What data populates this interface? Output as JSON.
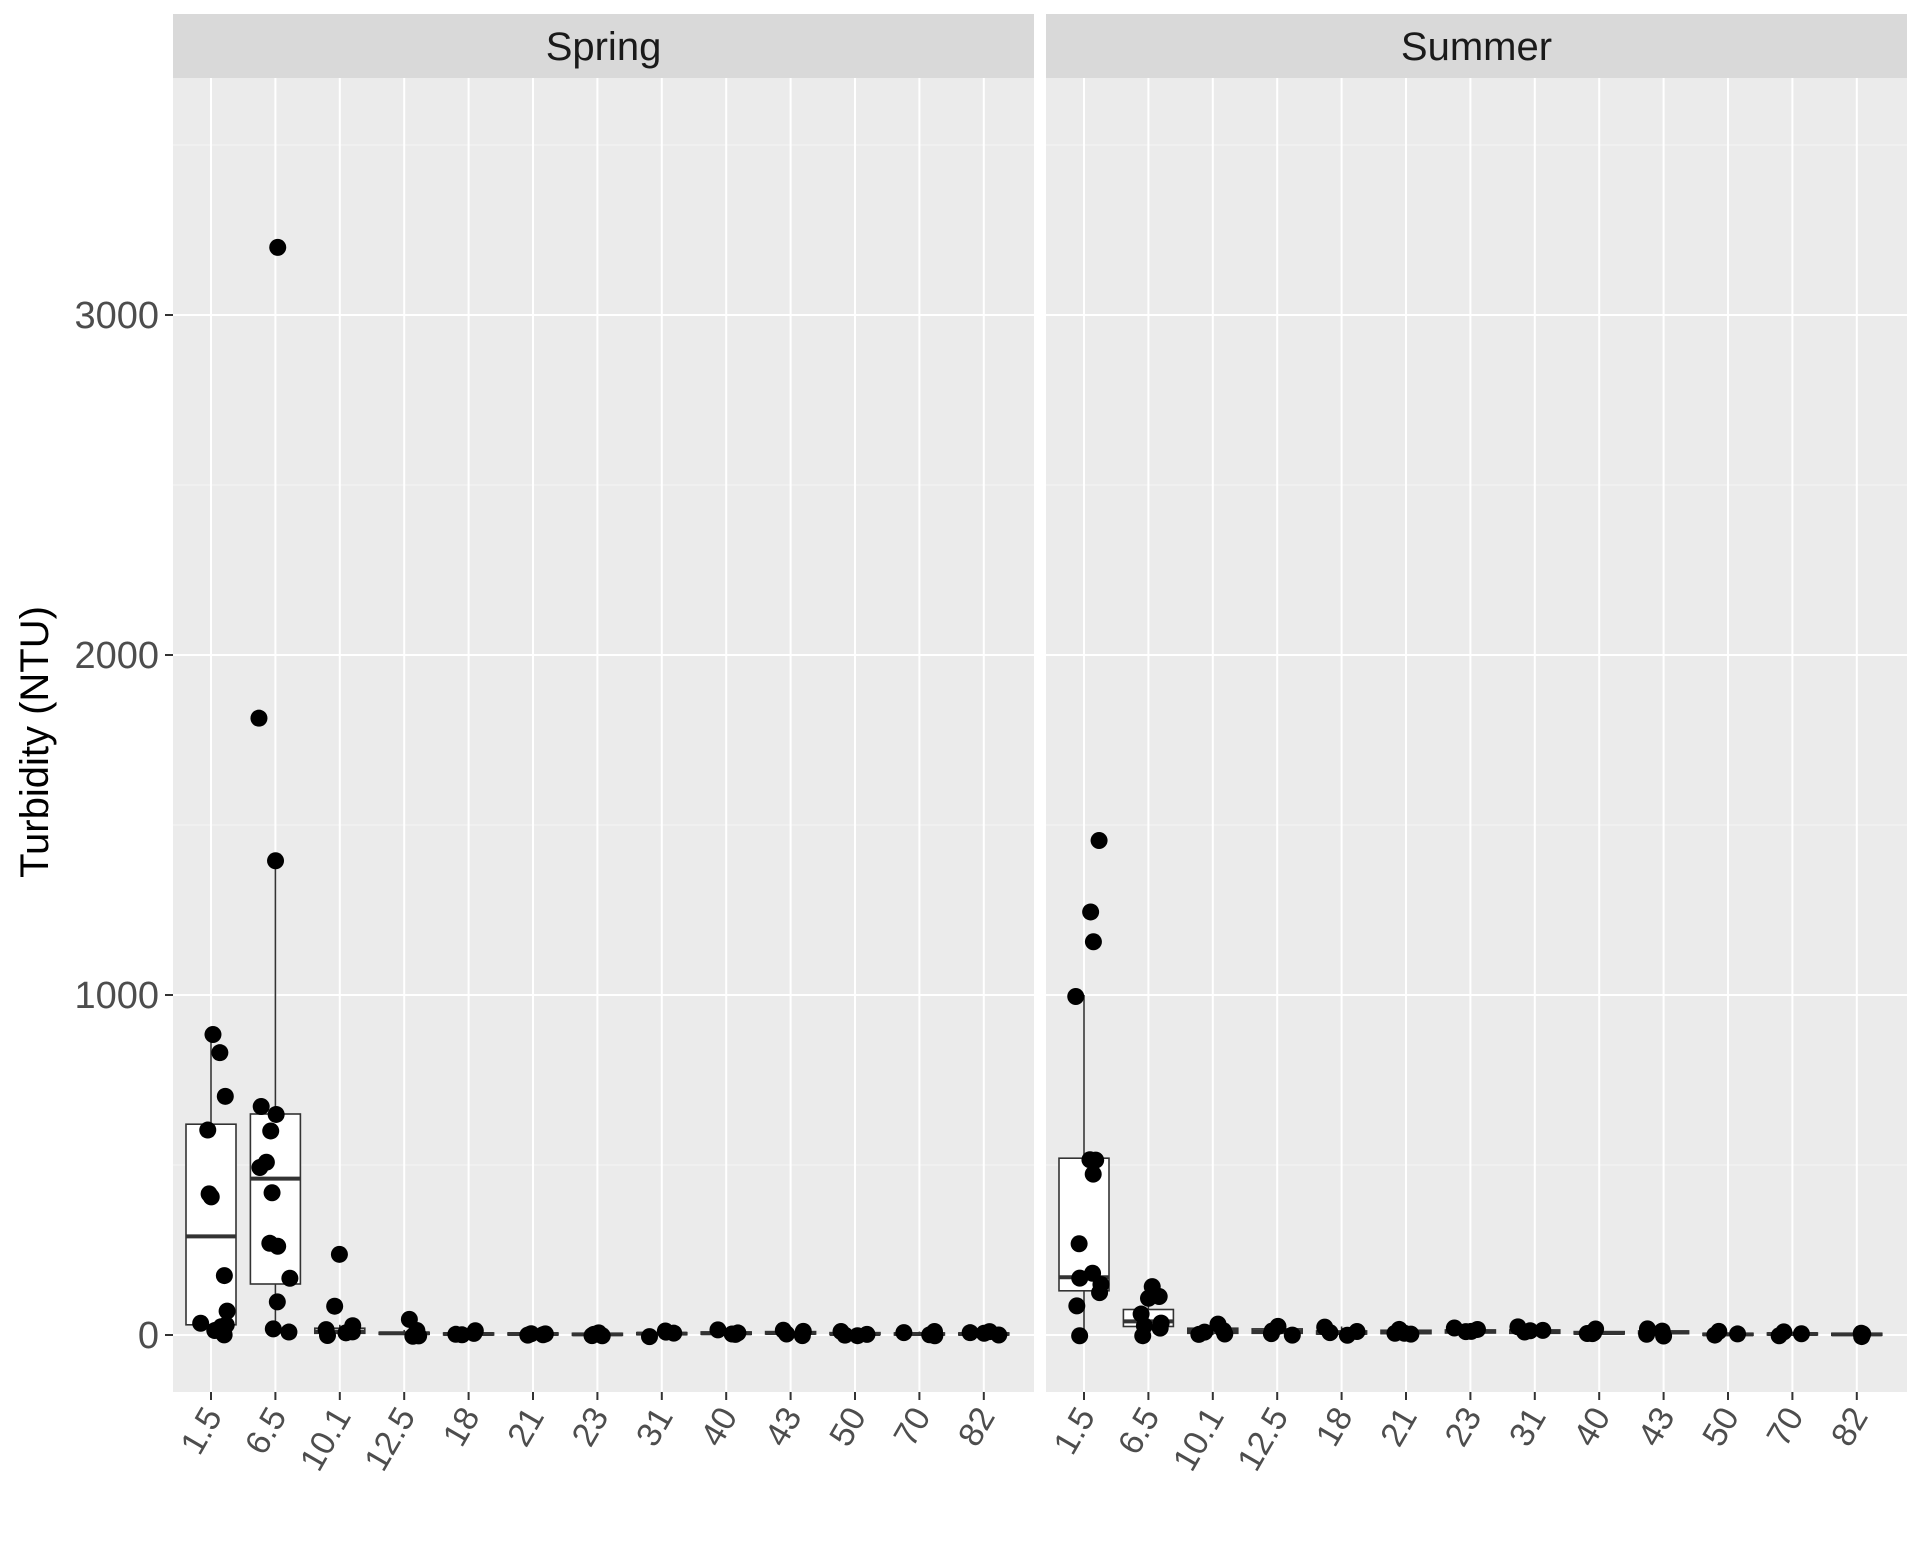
{
  "chart_data": {
    "type": "box",
    "ylabel": "Turbidity (NTU)",
    "y_ticks": [
      0,
      1000,
      2000,
      3000
    ],
    "y_tick_labels": [
      "0",
      "1000",
      "2000",
      "3000"
    ],
    "ylim": [
      -170,
      3710
    ],
    "categories": [
      "1.5",
      "6.5",
      "10.1",
      "12.5",
      "18",
      "21",
      "23",
      "31",
      "40",
      "43",
      "50",
      "70",
      "82"
    ],
    "facets": [
      {
        "label": "Spring",
        "boxes": [
          {
            "category": "1.5",
            "q1": 30,
            "median": 290,
            "q3": 620,
            "whisker_low": 0,
            "whisker_high": 880
          },
          {
            "category": "6.5",
            "q1": 150,
            "median": 460,
            "q3": 650,
            "whisker_low": 10,
            "whisker_high": 1400
          },
          {
            "category": "10.1",
            "q1": 5,
            "median": 10,
            "q3": 20,
            "whisker_low": 0,
            "whisker_high": 30
          },
          {
            "category": "12.5",
            "q1": 2,
            "median": 5,
            "q3": 8,
            "whisker_low": 0,
            "whisker_high": 15
          },
          {
            "category": "18",
            "q1": 1,
            "median": 3,
            "q3": 6,
            "whisker_low": 0,
            "whisker_high": 10
          },
          {
            "category": "21",
            "q1": 1,
            "median": 3,
            "q3": 6,
            "whisker_low": 0,
            "whisker_high": 10
          },
          {
            "category": "23",
            "q1": 1,
            "median": 2,
            "q3": 5,
            "whisker_low": 0,
            "whisker_high": 8
          },
          {
            "category": "31",
            "q1": 1,
            "median": 4,
            "q3": 7,
            "whisker_low": 0,
            "whisker_high": 12
          },
          {
            "category": "40",
            "q1": 2,
            "median": 5,
            "q3": 9,
            "whisker_low": 0,
            "whisker_high": 14
          },
          {
            "category": "43",
            "q1": 3,
            "median": 6,
            "q3": 10,
            "whisker_low": 0,
            "whisker_high": 15
          },
          {
            "category": "50",
            "q1": 1,
            "median": 3,
            "q3": 7,
            "whisker_low": 0,
            "whisker_high": 12
          },
          {
            "category": "70",
            "q1": 1,
            "median": 3,
            "q3": 6,
            "whisker_low": 0,
            "whisker_high": 10
          },
          {
            "category": "82",
            "q1": 1,
            "median": 3,
            "q3": 6,
            "whisker_low": 0,
            "whisker_high": 10
          }
        ],
        "points": [
          {
            "category": "1.5",
            "values": [
              880,
              830,
              700,
              600,
              410,
              410,
              170,
              70,
              40,
              30,
              20,
              10,
              0
            ]
          },
          {
            "category": "6.5",
            "values": [
              3200,
              1810,
              1400,
              670,
              650,
              600,
              510,
              490,
              420,
              270,
              260,
              170,
              100,
              20,
              10
            ]
          },
          {
            "category": "10.1",
            "values": [
              240,
              90,
              30,
              20,
              10,
              5,
              0
            ]
          },
          {
            "category": "12.5",
            "values": [
              40,
              10,
              5,
              0,
              0
            ]
          },
          {
            "category": "18",
            "values": [
              8,
              5,
              3,
              0
            ]
          },
          {
            "category": "21",
            "values": [
              8,
              5,
              3,
              0
            ]
          },
          {
            "category": "23",
            "values": [
              6,
              3,
              1,
              0
            ]
          },
          {
            "category": "31",
            "values": [
              10,
              6,
              3,
              0
            ]
          },
          {
            "category": "40",
            "values": [
              15,
              8,
              4,
              0
            ]
          },
          {
            "category": "43",
            "values": [
              12,
              8,
              5,
              2
            ]
          },
          {
            "category": "50",
            "values": [
              15,
              6,
              3,
              0
            ]
          },
          {
            "category": "70",
            "values": [
              10,
              5,
              2,
              0
            ]
          },
          {
            "category": "82",
            "values": [
              10,
              5,
              2,
              0
            ]
          }
        ]
      },
      {
        "label": "Summer",
        "boxes": [
          {
            "category": "1.5",
            "q1": 130,
            "median": 170,
            "q3": 520,
            "whisker_low": 0,
            "whisker_high": 1000
          },
          {
            "category": "6.5",
            "q1": 25,
            "median": 40,
            "q3": 75,
            "whisker_low": 0,
            "whisker_high": 140
          },
          {
            "category": "10.1",
            "q1": 5,
            "median": 12,
            "q3": 20,
            "whisker_low": 0,
            "whisker_high": 30
          },
          {
            "category": "12.5",
            "q1": 5,
            "median": 10,
            "q3": 18,
            "whisker_low": 0,
            "whisker_high": 25
          },
          {
            "category": "18",
            "q1": 3,
            "median": 6,
            "q3": 12,
            "whisker_low": 0,
            "whisker_high": 25
          },
          {
            "category": "21",
            "q1": 4,
            "median": 8,
            "q3": 14,
            "whisker_low": 0,
            "whisker_high": 20
          },
          {
            "category": "23",
            "q1": 6,
            "median": 10,
            "q3": 15,
            "whisker_low": 2,
            "whisker_high": 20
          },
          {
            "category": "31",
            "q1": 5,
            "median": 10,
            "q3": 15,
            "whisker_low": 0,
            "whisker_high": 20
          },
          {
            "category": "40",
            "q1": 3,
            "median": 6,
            "q3": 10,
            "whisker_low": 0,
            "whisker_high": 15
          },
          {
            "category": "43",
            "q1": 4,
            "median": 8,
            "q3": 12,
            "whisker_low": 0,
            "whisker_high": 15
          },
          {
            "category": "50",
            "q1": 0,
            "median": 2,
            "q3": 5,
            "whisker_low": 0,
            "whisker_high": 8
          },
          {
            "category": "70",
            "q1": 1,
            "median": 3,
            "q3": 6,
            "whisker_low": 0,
            "whisker_high": 10
          },
          {
            "category": "82",
            "q1": 1,
            "median": 2,
            "q3": 5,
            "whisker_low": 0,
            "whisker_high": 8
          }
        ],
        "points": [
          {
            "category": "1.5",
            "values": [
              1460,
              1240,
              1160,
              1000,
              520,
              510,
              470,
              270,
              180,
              170,
              150,
              130,
              80,
              0
            ]
          },
          {
            "category": "6.5",
            "values": [
              140,
              110,
              105,
              60,
              40,
              30,
              20,
              0
            ]
          },
          {
            "category": "10.1",
            "values": [
              30,
              15,
              10,
              5,
              0
            ]
          },
          {
            "category": "12.5",
            "values": [
              25,
              15,
              8,
              0
            ]
          },
          {
            "category": "18",
            "values": [
              25,
              10,
              5,
              0
            ]
          },
          {
            "category": "21",
            "values": [
              20,
              10,
              5,
              0
            ]
          },
          {
            "category": "23",
            "values": [
              20,
              15,
              10,
              5
            ]
          },
          {
            "category": "31",
            "values": [
              20,
              15,
              10,
              5
            ]
          },
          {
            "category": "40",
            "values": [
              15,
              10,
              5,
              0
            ]
          },
          {
            "category": "43",
            "values": [
              15,
              10,
              5,
              0
            ]
          },
          {
            "category": "50",
            "values": [
              8,
              3,
              0
            ]
          },
          {
            "category": "70",
            "values": [
              10,
              5,
              0
            ]
          },
          {
            "category": "82",
            "values": [
              8,
              4,
              0
            ]
          }
        ]
      }
    ],
    "grid": true,
    "legend": "none",
    "colors": {
      "panel_background": "#EBEBEB",
      "grid_line": "#FFFFFF",
      "strip_background": "#D9D9D9",
      "point": "#000000",
      "box_fill": "#FFFFFF",
      "box_stroke": "#333333",
      "tick_text": "#4D4D4D",
      "title_text": "#000000"
    }
  }
}
